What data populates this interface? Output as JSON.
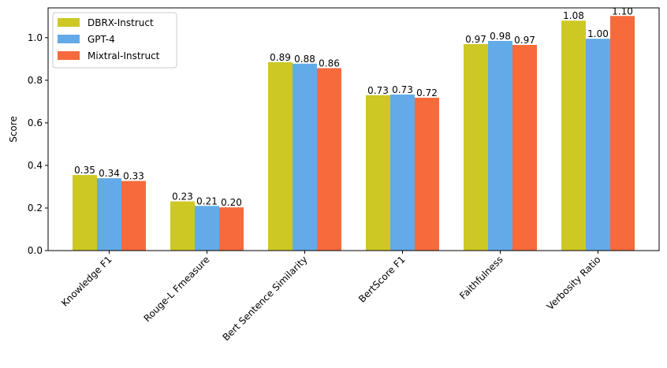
{
  "chart_data": {
    "type": "bar",
    "categories": [
      "Knowledge F1",
      "Rouge-L Fmeasure",
      "Bert Sentence Similarity",
      "BertScore F1",
      "Faithfulness",
      "Verbosity Ratio"
    ],
    "series": [
      {
        "name": "DBRX-Instruct",
        "color": "#cdc823",
        "values": [
          0.355,
          0.231,
          0.885,
          0.73,
          0.97,
          1.08
        ],
        "labels": [
          "0.35",
          "0.23",
          "0.89",
          "0.73",
          "0.97",
          "1.08"
        ]
      },
      {
        "name": "GPT-4",
        "color": "#63abe8",
        "values": [
          0.34,
          0.21,
          0.878,
          0.733,
          0.985,
          0.995
        ],
        "labels": [
          "0.34",
          "0.21",
          "0.88",
          "0.73",
          "0.98",
          "1.00"
        ]
      },
      {
        "name": "Mixtral-Instruct",
        "color": "#f76a3c",
        "values": [
          0.327,
          0.203,
          0.857,
          0.718,
          0.966,
          1.102
        ],
        "labels": [
          "0.33",
          "0.20",
          "0.86",
          "0.72",
          "0.97",
          "1.10"
        ]
      }
    ],
    "ylabel": "Score",
    "xlabel": "",
    "title": "",
    "ylim": [
      0,
      1.14
    ],
    "yticks": [
      "0.0",
      "0.2",
      "0.4",
      "0.6",
      "0.8",
      "1.0"
    ],
    "legend": "top-left",
    "grid": false
  }
}
